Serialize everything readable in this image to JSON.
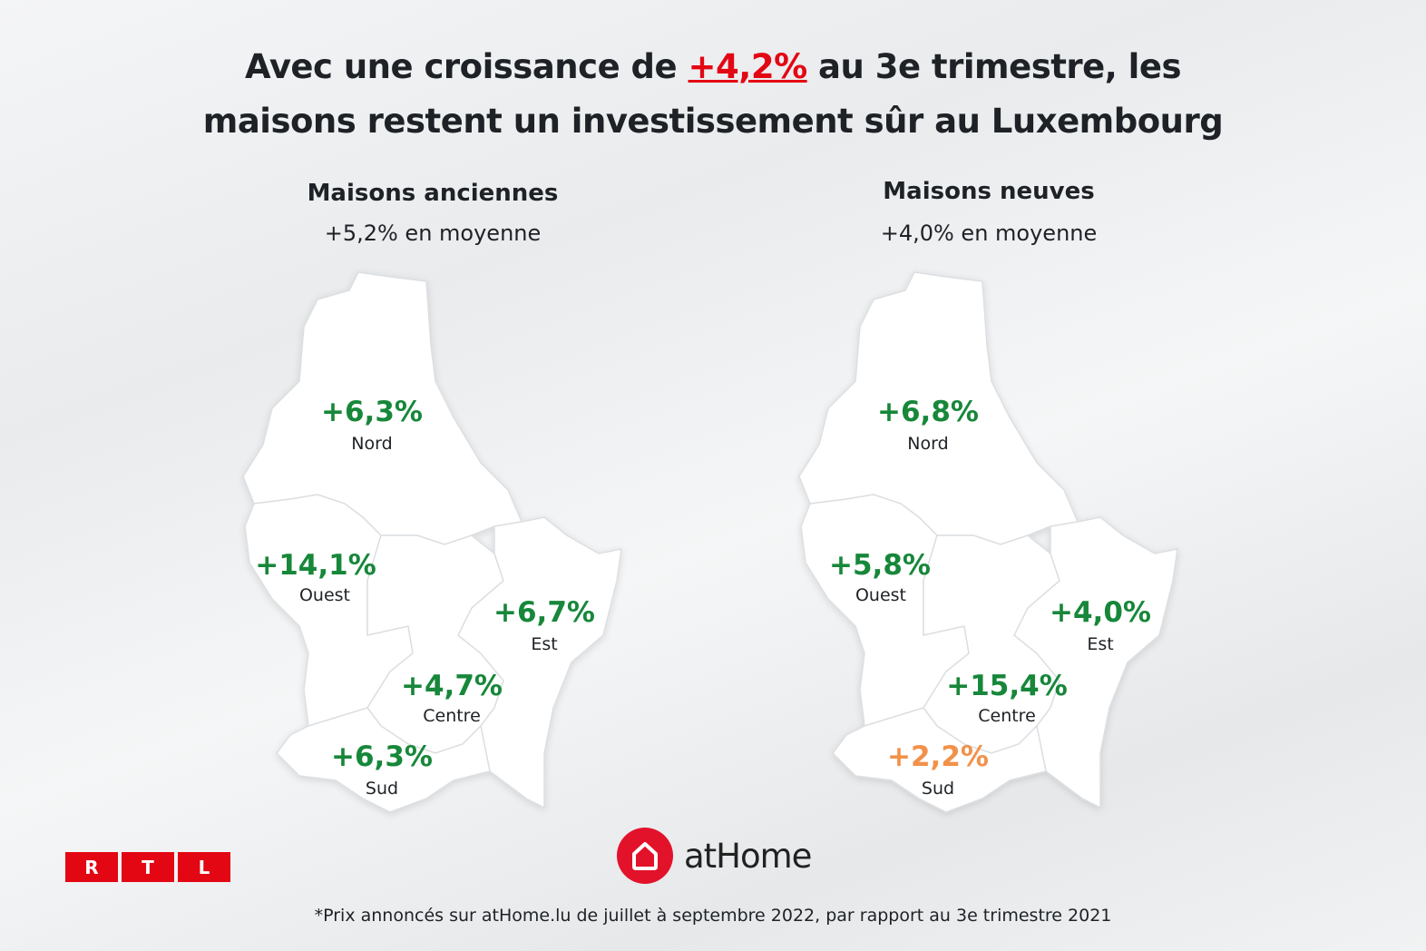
{
  "title": {
    "line1_pre": "Avec  une croissance  de ",
    "line1_highlight": "+4,2%",
    "line1_post": " au 3e trimestre, les",
    "line2": "maisons restent un investissement sûr au Luxembourg"
  },
  "maps": [
    {
      "heading": "Maisons anciennes",
      "average": "+5,2% en moyenne",
      "regions": {
        "nord": {
          "name": "Nord",
          "value": "+6,3%"
        },
        "ouest": {
          "name": "Ouest",
          "value": "+14,1%"
        },
        "est": {
          "name": "Est",
          "value": "+6,7%"
        },
        "centre": {
          "name": "Centre",
          "value": "+4,7%"
        },
        "sud": {
          "name": "Sud",
          "value": "+6,3%"
        }
      }
    },
    {
      "heading": "Maisons neuves",
      "average": "+4,0% en moyenne",
      "regions": {
        "nord": {
          "name": "Nord",
          "value": "+6,8%"
        },
        "ouest": {
          "name": "Ouest",
          "value": "+5,8%"
        },
        "est": {
          "name": "Est",
          "value": "+4,0%"
        },
        "centre": {
          "name": "Centre",
          "value": "+15,4%"
        },
        "sud": {
          "name": "Sud",
          "value": "+2,2%"
        }
      }
    }
  ],
  "colors": {
    "positive": "#17873a",
    "low": "#f2914a",
    "brand": "#e30613"
  },
  "logos": {
    "rtl": [
      "R",
      "T",
      "L"
    ],
    "athome": "atHome"
  },
  "footnote": "*Prix annoncés sur atHome.lu de juillet à septembre 2022, par rapport au 3e trimestre 2021"
}
